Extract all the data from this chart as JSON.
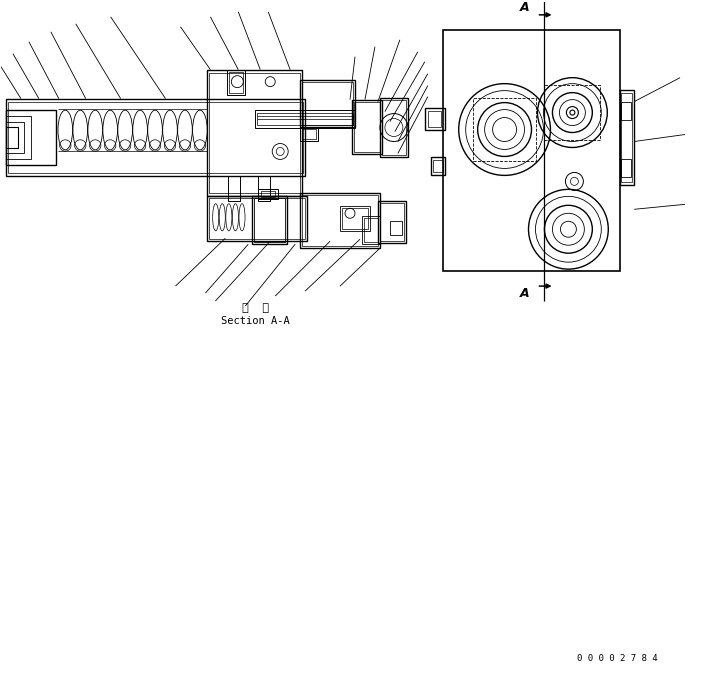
{
  "bg_color": "#ffffff",
  "lc": "#000000",
  "section_label": "断  面",
  "section_sublabel": "Section A-A",
  "doc_number": "0 0 0 0 2 7 8 4"
}
